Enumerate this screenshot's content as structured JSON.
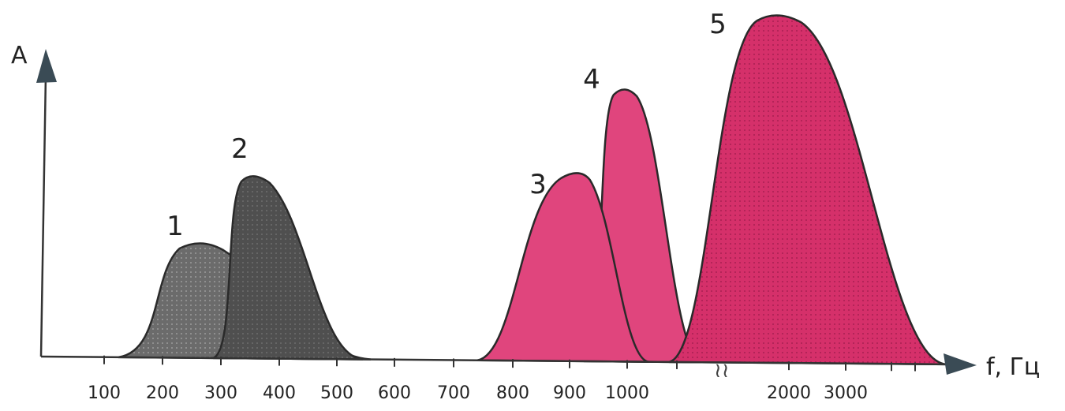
{
  "chart_data": {
    "type": "area",
    "ylabel": "A",
    "xlabel": "f, Гц",
    "x_ticks": [
      "100",
      "200",
      "300",
      "400",
      "500",
      "600",
      "700",
      "800",
      "900",
      "1000",
      "2000",
      "3000"
    ],
    "axis_break_between": [
      "1000",
      "2000"
    ],
    "grid": false,
    "series": [
      {
        "name": "1",
        "peak_x": 270,
        "peak_rel_amplitude": 0.3,
        "color": "#6b6b6b",
        "x_range": [
          120,
          500
        ]
      },
      {
        "name": "2",
        "peak_x": 360,
        "peak_rel_amplitude": 0.51,
        "color": "#4f4f4f",
        "x_range": [
          150,
          550
        ]
      },
      {
        "name": "3",
        "peak_x": 930,
        "peak_rel_amplitude": 0.52,
        "color": "#e0457d",
        "x_range": [
          740,
          1030
        ]
      },
      {
        "name": "4",
        "peak_x": 990,
        "peak_rel_amplitude": 0.77,
        "color": "#e0457d",
        "x_range": [
          770,
          1130
        ]
      },
      {
        "name": "5",
        "peak_x": 1900,
        "peak_rel_amplitude": 1.0,
        "color": "#d5306a",
        "x_range": [
          1150,
          4300
        ]
      }
    ]
  }
}
